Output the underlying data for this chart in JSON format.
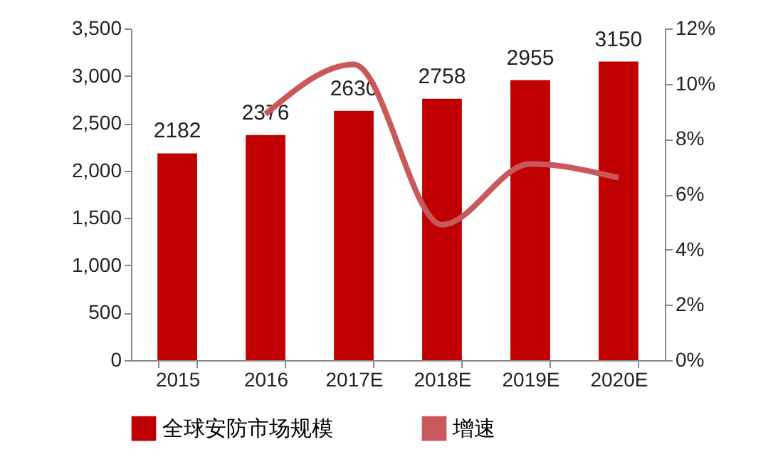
{
  "chart_data": {
    "type": "bar",
    "categories": [
      "2015",
      "2016",
      "2017E",
      "2018E",
      "2019E",
      "2020E"
    ],
    "series": [
      {
        "name": "全球安防市场规模",
        "color": "#c00000",
        "values": [
          2182,
          2376,
          2630,
          2758,
          2955,
          3150
        ],
        "value_labels": [
          "2182",
          "2376",
          "2630",
          "2758",
          "2955",
          "3150"
        ]
      },
      {
        "name": "增速",
        "type": "line",
        "axis": "y2",
        "color": "#c9585a",
        "values": [
          null,
          8.9,
          10.7,
          4.9,
          7.1,
          6.6
        ]
      }
    ],
    "ylim": [
      0,
      3500
    ],
    "yticks": [
      {
        "value": 0,
        "label": "0"
      },
      {
        "value": 500,
        "label": "500"
      },
      {
        "value": 1000,
        "label": "1,000"
      },
      {
        "value": 1500,
        "label": "1,500"
      },
      {
        "value": 2000,
        "label": "2,000"
      },
      {
        "value": 2500,
        "label": "2,500"
      },
      {
        "value": 3000,
        "label": "3,000"
      },
      {
        "value": 3500,
        "label": "3,500"
      }
    ],
    "y2lim": [
      0,
      12
    ],
    "y2ticks": [
      {
        "value": 0,
        "label": "0%"
      },
      {
        "value": 2,
        "label": "2%"
      },
      {
        "value": 4,
        "label": "4%"
      },
      {
        "value": 6,
        "label": "6%"
      },
      {
        "value": 8,
        "label": "8%"
      },
      {
        "value": 10,
        "label": "10%"
      },
      {
        "value": 12,
        "label": "12%"
      }
    ],
    "grid": false,
    "legend": "bottom"
  }
}
